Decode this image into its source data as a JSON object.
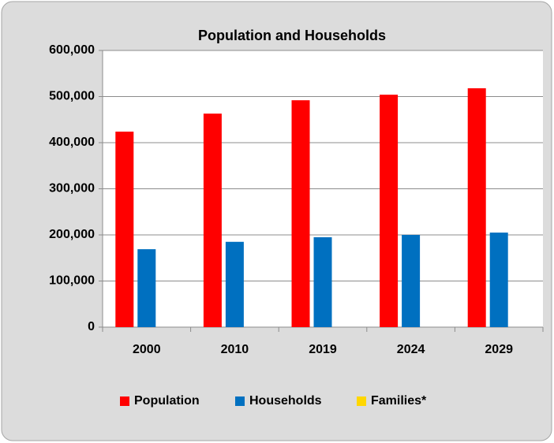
{
  "chart_data": {
    "type": "bar",
    "title": "Population and Households",
    "categories": [
      "2000",
      "2010",
      "2019",
      "2024",
      "2029"
    ],
    "series": [
      {
        "name": "Population",
        "color": "#ff0000",
        "values": [
          424000,
          463000,
          492000,
          504000,
          518000
        ]
      },
      {
        "name": "Households",
        "color": "#0070c0",
        "values": [
          169000,
          185000,
          195000,
          200000,
          205000
        ]
      },
      {
        "name": "Families*",
        "color": "#ffd700",
        "values": [
          null,
          null,
          null,
          null,
          null
        ]
      }
    ],
    "ylim": [
      0,
      600000
    ],
    "yticks": [
      0,
      {
        "value": 100000,
        "label": "100,000"
      },
      {
        "value": 200000,
        "label": "200,000"
      },
      {
        "value": 300000,
        "label": "300,000"
      },
      {
        "value": 400000,
        "label": "400,000"
      },
      {
        "value": 500000,
        "label": "500,000"
      },
      {
        "value": 600000,
        "label": "600,000"
      }
    ],
    "grid": true,
    "legend": "bottom"
  }
}
